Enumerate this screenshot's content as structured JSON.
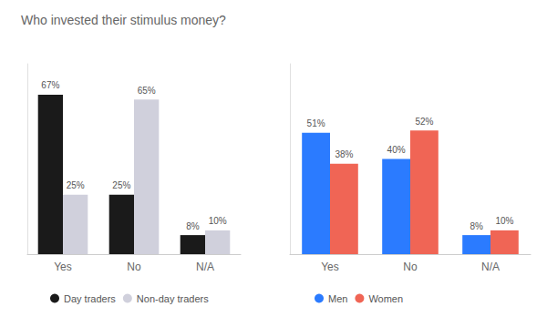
{
  "chart_data": [
    {
      "type": "bar",
      "title": "Who invested their stimulus money?",
      "categories": [
        "Yes",
        "No",
        "N/A"
      ],
      "series": [
        {
          "name": "Day traders",
          "color": "#1a1a1a",
          "values": [
            67,
            25,
            8
          ],
          "value_labels": [
            "67%",
            "25%",
            "8%"
          ]
        },
        {
          "name": "Non-day traders",
          "color": "#d0d0dc",
          "values": [
            25,
            65,
            10
          ],
          "value_labels": [
            "25%",
            "65%",
            "10%"
          ]
        }
      ],
      "ylim": [
        0,
        80
      ],
      "grid": false,
      "legend": "bottom",
      "data_labels": true,
      "tick_labels": "x"
    },
    {
      "type": "bar",
      "categories": [
        "Yes",
        "No",
        "N/A"
      ],
      "series": [
        {
          "name": "Men",
          "color": "#2b7bff",
          "values": [
            51,
            40,
            8
          ],
          "value_labels": [
            "51%",
            "40%",
            "8%"
          ]
        },
        {
          "name": "Women",
          "color": "#f06555",
          "values": [
            38,
            52,
            10
          ],
          "value_labels": [
            "38%",
            "52%",
            "10%"
          ]
        }
      ],
      "ylim": [
        0,
        80
      ],
      "grid": false,
      "legend": "bottom",
      "data_labels": true,
      "tick_labels": "x"
    }
  ]
}
